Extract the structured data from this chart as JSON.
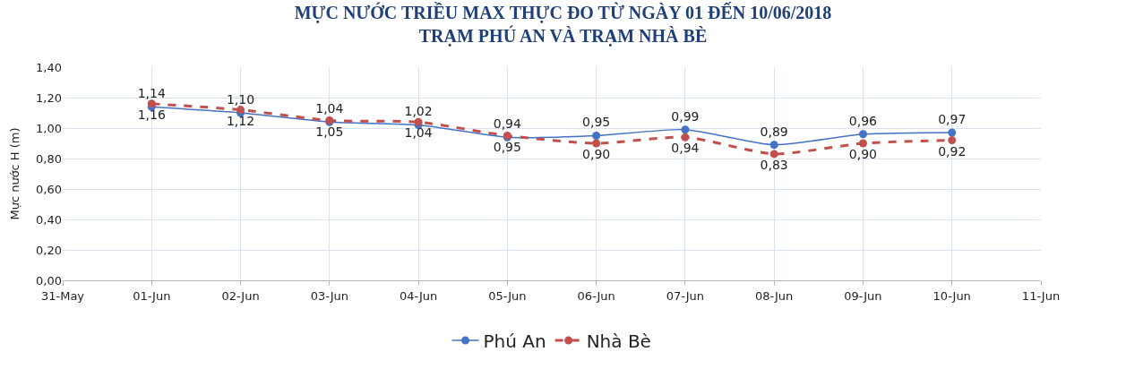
{
  "chart_data": {
    "type": "line",
    "title": "MỰC NƯỚC TRIỀU MAX THỰC ĐO TỪ NGÀY 01 ĐẾN 10/06/2018\nTRẠM PHÚ AN VÀ TRẠM NHÀ BÈ",
    "ylabel": "Mực nước H (m)",
    "x": [
      "--06-01",
      "--06-02",
      "--06-03",
      "--06-04",
      "--06-05",
      "--06-06",
      "--06-07",
      "--06-08",
      "--06-09",
      "--06-10"
    ],
    "series": [
      {
        "name": "Phú An",
        "color": "#4472c4",
        "line_style": "solid",
        "values": [
          1.14,
          1.1,
          1.04,
          1.02,
          0.94,
          0.95,
          0.99,
          0.89,
          0.96,
          0.97
        ],
        "value_labels": [
          "1,14",
          "1,10",
          "1,04",
          "1,02",
          "0,94",
          "0,95",
          "0,99",
          "0,89",
          "0,96",
          "0,97"
        ]
      },
      {
        "name": "Nhà Bè",
        "color": "#c0504d",
        "line_style": "dashed",
        "values": [
          1.16,
          1.12,
          1.05,
          1.04,
          0.95,
          0.9,
          0.94,
          0.83,
          0.9,
          0.92
        ],
        "value_labels": [
          "1,16",
          "1,12",
          "1,05",
          "1,04",
          "0,95",
          "0,90",
          "0,94",
          "0,83",
          "0,90",
          "0,92"
        ]
      }
    ],
    "xlim": [
      "--05-31",
      "--06-11"
    ],
    "xticks": [
      {
        "value": "--05-31",
        "label": "31-May"
      },
      {
        "value": "--06-01",
        "label": "01-Jun"
      },
      {
        "value": "--06-02",
        "label": "02-Jun"
      },
      {
        "value": "--06-03",
        "label": "03-Jun"
      },
      {
        "value": "--06-04",
        "label": "04-Jun"
      },
      {
        "value": "--06-05",
        "label": "05-Jun"
      },
      {
        "value": "--06-06",
        "label": "06-Jun"
      },
      {
        "value": "--06-07",
        "label": "07-Jun"
      },
      {
        "value": "--06-08",
        "label": "08-Jun"
      },
      {
        "value": "--06-09",
        "label": "09-Jun"
      },
      {
        "value": "--06-10",
        "label": "10-Jun"
      },
      {
        "value": "--06-11",
        "label": "11-Jun"
      }
    ],
    "ylim": [
      0,
      1.4
    ],
    "yticks": [
      {
        "value": 0,
        "label": "0,00"
      },
      {
        "value": 0.2,
        "label": "0,20"
      },
      {
        "value": 0.4,
        "label": "0,40"
      },
      {
        "value": 0.6,
        "label": "0,60"
      },
      {
        "value": 0.8,
        "label": "0,80"
      },
      {
        "value": 1.0,
        "label": "1,00"
      },
      {
        "value": 1.2,
        "label": "1,20"
      },
      {
        "value": 1.4,
        "label": "1,40"
      }
    ],
    "grid": true,
    "legend": "bottom",
    "marker": "circle"
  }
}
